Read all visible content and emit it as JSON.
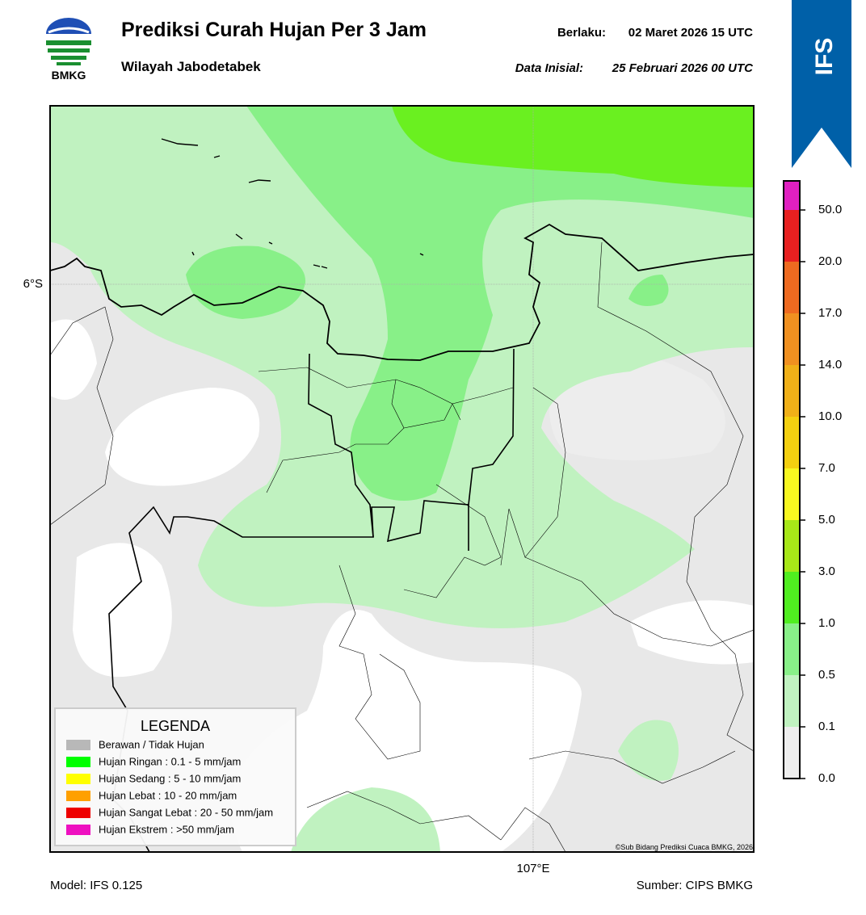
{
  "header": {
    "logo_text": "BMKG",
    "title": "Prediksi Curah Hujan Per 3 Jam",
    "subtitle": "Wilayah Jabodetabek",
    "valid_label": "Berlaku:",
    "valid_time": "02 Maret 2026 15 UTC",
    "init_label": "Data Inisial:",
    "init_time": "25 Februari 2026 00 UTC",
    "badge": "IFS"
  },
  "map": {
    "lat_label": "6°S",
    "lon_label": "107°E",
    "copyright": "©Sub Bidang Prediksi Cuaca BMKG, 2026"
  },
  "legend": {
    "title": "LEGENDA",
    "items": [
      "Berawan / Tidak Hujan",
      "Hujan Ringan : 0.1 - 5 mm/jam",
      "Hujan Sedang : 5 - 10 mm/jam",
      "Hujan Lebat : 10 - 20 mm/jam",
      "Hujan Sangat Lebat : 20 - 50 mm/jam",
      "Hujan Ekstrem : >50 mm/jam"
    ]
  },
  "colorbar": {
    "ticks": [
      "0.0",
      "0.1",
      "0.5",
      "1.0",
      "3.0",
      "5.0",
      "7.0",
      "10.0",
      "14.0",
      "17.0",
      "20.0",
      "50.0"
    ]
  },
  "footer": {
    "model": "Model: IFS 0.125",
    "source": "Sumber: CIPS BMKG"
  }
}
